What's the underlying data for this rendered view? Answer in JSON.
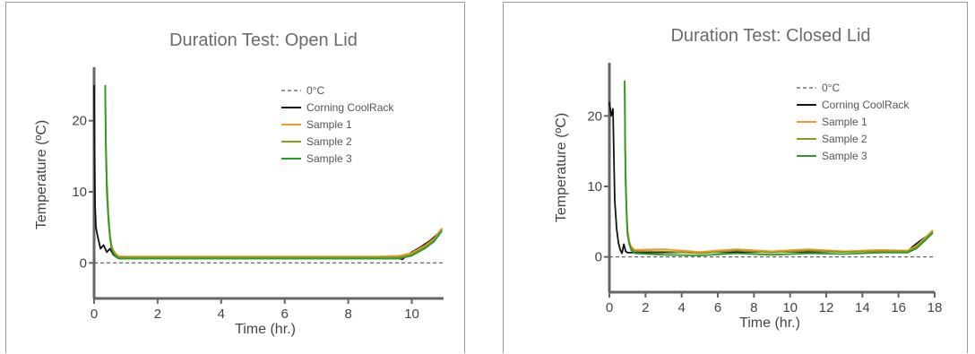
{
  "colors": {
    "zero": "#555555",
    "coolrack": "#111111",
    "sample1": "#f39a2c",
    "sample2": "#8e9a1a",
    "sample3": "#2e9a2e",
    "axis": "#666666"
  },
  "chart_data": [
    {
      "type": "line",
      "title": "Duration Test: Open Lid",
      "xlabel": "Time (hr.)",
      "ylabel": "Temperature (ºC)",
      "xlim": [
        0,
        11
      ],
      "ylim": [
        -5,
        25
      ],
      "xticks": [
        0,
        2,
        4,
        6,
        8,
        10
      ],
      "yticks": [
        0,
        10,
        20
      ],
      "grid": false,
      "legend_position": "top-right",
      "series": [
        {
          "name": "0°C",
          "color_key": "zero",
          "style": "dashed",
          "x": [
            0,
            11
          ],
          "y": [
            0,
            0
          ]
        },
        {
          "name": "Corning CoolRack",
          "color_key": "coolrack",
          "style": "solid",
          "x": [
            0,
            0.03,
            0.06,
            0.1,
            0.15,
            0.2,
            0.3,
            0.4,
            0.5,
            0.6,
            0.7,
            0.8,
            9.3,
            9.5,
            9.7,
            10.0,
            10.3,
            10.6,
            10.8,
            10.95
          ],
          "y": [
            25,
            8,
            5,
            4,
            3,
            2,
            2.5,
            1.5,
            2,
            1.2,
            0.8,
            0.6,
            0.6,
            0.8,
            0.5,
            1.5,
            2.3,
            3.2,
            4.0,
            4.8
          ]
        },
        {
          "name": "Sample 1",
          "color_key": "sample1",
          "style": "solid",
          "x": [
            0.35,
            0.37,
            0.4,
            0.45,
            0.5,
            0.55,
            0.6,
            0.7,
            0.8,
            9.0,
            9.6,
            10.0,
            10.4,
            10.7,
            10.95
          ],
          "y": [
            25,
            18,
            12,
            7,
            4,
            2.5,
            1.8,
            1.2,
            0.9,
            0.9,
            1.0,
            1.4,
            2.4,
            3.4,
            4.9
          ]
        },
        {
          "name": "Sample 2",
          "color_key": "sample2",
          "style": "solid",
          "x": [
            0.35,
            0.37,
            0.4,
            0.45,
            0.5,
            0.55,
            0.6,
            0.7,
            0.8,
            9.0,
            9.6,
            10.0,
            10.4,
            10.7,
            10.95
          ],
          "y": [
            25,
            17,
            11,
            6.5,
            3.8,
            2.3,
            1.6,
            1.0,
            0.8,
            0.8,
            0.8,
            1.2,
            2.2,
            3.2,
            4.7
          ]
        },
        {
          "name": "Sample 3",
          "color_key": "sample3",
          "style": "solid",
          "x": [
            0.35,
            0.37,
            0.4,
            0.45,
            0.5,
            0.55,
            0.6,
            0.7,
            0.8,
            9.0,
            9.6,
            10.0,
            10.4,
            10.7,
            10.95
          ],
          "y": [
            25,
            16,
            10,
            6,
            3.5,
            2.0,
            1.4,
            0.8,
            0.6,
            0.6,
            0.6,
            1.0,
            2.0,
            3.0,
            4.5
          ]
        }
      ]
    },
    {
      "type": "line",
      "title": "Duration Test: Closed Lid",
      "xlabel": "Time (hr.)",
      "ylabel": "Temperature (ºC)",
      "xlim": [
        0,
        18
      ],
      "ylim": [
        -5,
        25
      ],
      "xticks": [
        0,
        2,
        4,
        6,
        8,
        10,
        12,
        14,
        16,
        18
      ],
      "yticks": [
        0,
        10,
        20
      ],
      "grid": false,
      "legend_position": "top-right",
      "series": [
        {
          "name": "0°C",
          "color_key": "zero",
          "style": "dashed",
          "x": [
            0,
            18
          ],
          "y": [
            0,
            0
          ]
        },
        {
          "name": "Corning CoolRack",
          "color_key": "coolrack",
          "style": "solid",
          "x": [
            0,
            0.1,
            0.2,
            0.3,
            0.4,
            0.5,
            0.6,
            0.7,
            0.8,
            0.9,
            1.0,
            1.2,
            16.5,
            16.8,
            17.2,
            17.6,
            17.9
          ],
          "y": [
            22,
            20,
            21,
            8,
            4,
            2,
            1,
            0.5,
            1.8,
            0.8,
            0.6,
            0.6,
            0.8,
            1.5,
            2.3,
            3.0,
            3.6
          ]
        },
        {
          "name": "Sample 1",
          "color_key": "sample1",
          "style": "solid",
          "x": [
            0.85,
            0.87,
            0.9,
            0.95,
            1.0,
            1.1,
            1.2,
            1.4,
            3,
            5,
            7,
            9,
            11,
            13,
            15,
            16.5,
            17.0,
            17.5,
            17.9
          ],
          "y": [
            25,
            18,
            12,
            7,
            4,
            2.2,
            1.5,
            1.0,
            1.1,
            0.7,
            1.1,
            0.8,
            1.1,
            0.8,
            1.0,
            0.9,
            1.6,
            2.8,
            3.8
          ]
        },
        {
          "name": "Sample 2",
          "color_key": "sample2",
          "style": "solid",
          "x": [
            0.85,
            0.87,
            0.9,
            0.95,
            1.0,
            1.1,
            1.2,
            1.4,
            3,
            5,
            7,
            9,
            11,
            13,
            15,
            16.5,
            17.0,
            17.5,
            17.9
          ],
          "y": [
            25,
            17,
            11,
            6.5,
            3.5,
            2.0,
            1.2,
            0.8,
            0.8,
            0.5,
            0.9,
            0.6,
            0.9,
            0.7,
            0.8,
            0.8,
            1.4,
            2.6,
            3.6
          ]
        },
        {
          "name": "Sample 3",
          "color_key": "sample3",
          "style": "solid",
          "x": [
            0.85,
            0.87,
            0.9,
            0.95,
            1.0,
            1.1,
            1.2,
            1.4,
            3,
            5,
            7,
            9,
            11,
            13,
            15,
            16.5,
            17.0,
            17.5,
            17.9
          ],
          "y": [
            25,
            16,
            10,
            6,
            3.2,
            1.8,
            1.0,
            0.5,
            0.3,
            0.2,
            0.5,
            0.3,
            0.5,
            0.4,
            0.6,
            0.6,
            1.2,
            2.4,
            3.4
          ]
        }
      ]
    }
  ]
}
